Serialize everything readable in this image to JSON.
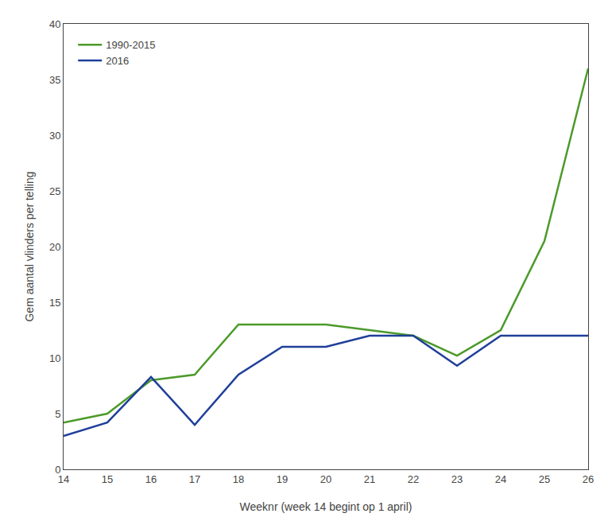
{
  "chart_data": {
    "type": "line",
    "x": [
      14,
      15,
      16,
      17,
      18,
      19,
      20,
      21,
      22,
      23,
      24,
      25,
      26
    ],
    "series": [
      {
        "name": "1990-2015",
        "color": "#4c9a2a",
        "values": [
          4.2,
          5.0,
          8.0,
          8.5,
          13.0,
          13.0,
          13.0,
          12.5,
          12.0,
          10.2,
          12.5,
          20.5,
          36.0
        ]
      },
      {
        "name": "2016",
        "color": "#1f3f99",
        "values": [
          3.0,
          4.2,
          8.3,
          4.0,
          8.5,
          11.0,
          11.0,
          12.0,
          12.0,
          9.3,
          12.0,
          12.0,
          12.0
        ]
      }
    ],
    "xlabel": "Weeknr (week 14 begint op 1 april)",
    "ylabel": "Gem aantal vlinders per telling",
    "xlim": [
      14,
      26
    ],
    "xticks": [
      14,
      15,
      16,
      17,
      18,
      19,
      20,
      21,
      22,
      23,
      24,
      25,
      26
    ],
    "ylim": [
      0,
      40
    ],
    "yticks": [
      0,
      5,
      10,
      15,
      20,
      25,
      30,
      35,
      40
    ],
    "grid": false,
    "legend": "upper left"
  }
}
